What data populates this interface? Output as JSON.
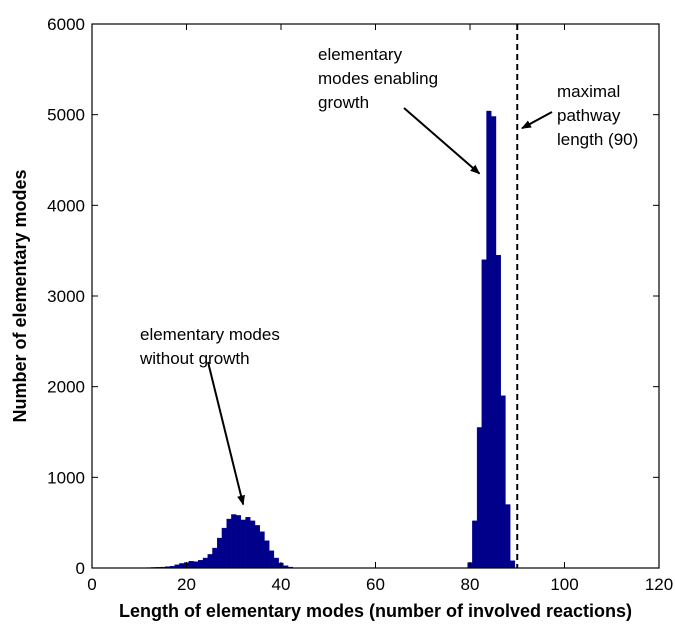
{
  "chart_data": {
    "type": "bar",
    "title": "",
    "xlabel": "Length of elementary modes (number of involved reactions)",
    "ylabel": "Number of elementary modes",
    "xlim": [
      0,
      120
    ],
    "ylim": [
      0,
      6000
    ],
    "xticks": [
      0,
      20,
      40,
      60,
      80,
      100,
      120
    ],
    "yticks": [
      0,
      1000,
      2000,
      3000,
      4000,
      5000,
      6000
    ],
    "grid": false,
    "bar_color": "#00008b",
    "bin_width": 1,
    "x": [
      10,
      11,
      12,
      13,
      14,
      15,
      16,
      17,
      18,
      19,
      20,
      21,
      22,
      23,
      24,
      25,
      26,
      27,
      28,
      29,
      30,
      31,
      32,
      33,
      34,
      35,
      36,
      37,
      38,
      39,
      40,
      41,
      42,
      80,
      81,
      82,
      83,
      84,
      85,
      86,
      87,
      88,
      89
    ],
    "values": [
      2,
      3,
      4,
      6,
      8,
      10,
      15,
      20,
      35,
      50,
      60,
      75,
      70,
      85,
      110,
      150,
      220,
      330,
      440,
      540,
      590,
      580,
      530,
      560,
      520,
      470,
      400,
      300,
      190,
      110,
      55,
      25,
      10,
      60,
      520,
      1550,
      3400,
      5040,
      4980,
      3450,
      1900,
      700,
      80
    ],
    "reference_line": {
      "x": 90,
      "style": "dashed",
      "color": "#000000"
    },
    "annotations": [
      {
        "lines": [
          "elementary modes",
          "without growth"
        ],
        "arrow_to": {
          "x": 32,
          "y": 700
        }
      },
      {
        "lines": [
          "elementary",
          "modes enabling",
          "growth"
        ],
        "arrow_to": {
          "x": 82,
          "y": 4350
        }
      },
      {
        "lines": [
          "maximal",
          "pathway",
          "length (90)"
        ],
        "arrow_to": {
          "x": 91,
          "y": 4850
        }
      }
    ]
  }
}
